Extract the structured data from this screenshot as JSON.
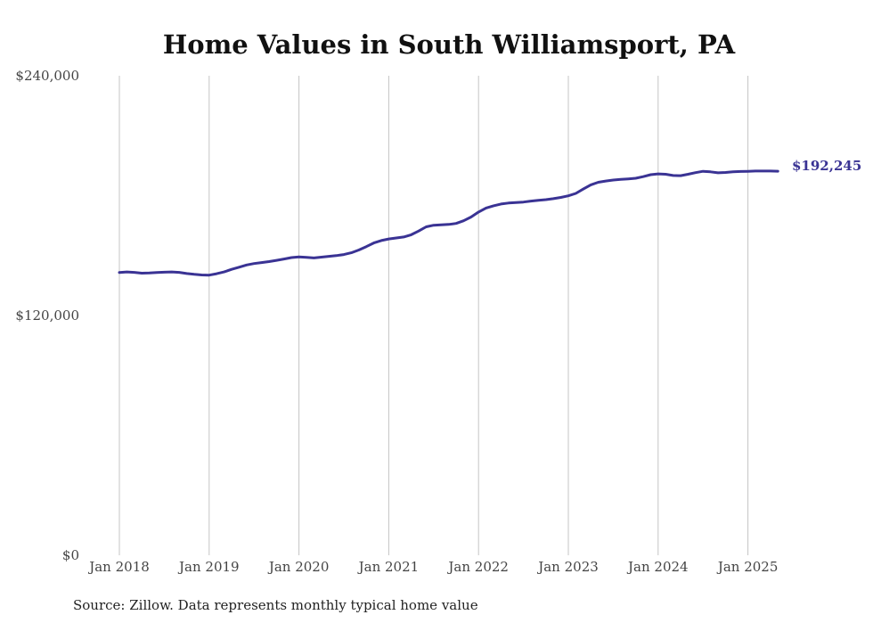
{
  "chart_data": {
    "type": "line",
    "title": "Home Values in South Williamsport, PA",
    "xlabel": "",
    "ylabel": "",
    "ylim": [
      0,
      240000
    ],
    "yticks": [
      0,
      120000,
      240000
    ],
    "ytick_labels": [
      "$0",
      "$120,000",
      "$240,000"
    ],
    "xticks": [
      "2018-01",
      "2019-01",
      "2020-01",
      "2021-01",
      "2022-01",
      "2023-01",
      "2024-01",
      "2025-01"
    ],
    "xtick_labels": [
      "Jan 2018",
      "Jan 2019",
      "Jan 2020",
      "Jan 2021",
      "Jan 2022",
      "Jan 2023",
      "Jan 2024",
      "Jan 2025"
    ],
    "xlim": [
      "2018-01",
      "2025-05"
    ],
    "grid": {
      "vertical": true,
      "horizontal": false
    },
    "line_color": "#3a3394",
    "end_label": "$192,245",
    "series": [
      {
        "x": [
          "2018-01",
          "2018-02",
          "2018-03",
          "2018-04",
          "2018-05",
          "2018-06",
          "2018-07",
          "2018-08",
          "2018-09",
          "2018-10",
          "2018-11",
          "2018-12",
          "2019-01",
          "2019-02",
          "2019-03",
          "2019-04",
          "2019-05",
          "2019-06",
          "2019-07",
          "2019-08",
          "2019-09",
          "2019-10",
          "2019-11",
          "2019-12",
          "2020-01",
          "2020-02",
          "2020-03",
          "2020-04",
          "2020-05",
          "2020-06",
          "2020-07",
          "2020-08",
          "2020-09",
          "2020-10",
          "2020-11",
          "2020-12",
          "2021-01",
          "2021-02",
          "2021-03",
          "2021-04",
          "2021-05",
          "2021-06",
          "2021-07",
          "2021-08",
          "2021-09",
          "2021-10",
          "2021-11",
          "2021-12",
          "2022-01",
          "2022-02",
          "2022-03",
          "2022-04",
          "2022-05",
          "2022-06",
          "2022-07",
          "2022-08",
          "2022-09",
          "2022-10",
          "2022-11",
          "2022-12",
          "2023-01",
          "2023-02",
          "2023-03",
          "2023-04",
          "2023-05",
          "2023-06",
          "2023-07",
          "2023-08",
          "2023-09",
          "2023-10",
          "2023-11",
          "2023-12",
          "2024-01",
          "2024-02",
          "2024-03",
          "2024-04",
          "2024-05",
          "2024-06",
          "2024-07",
          "2024-08",
          "2024-09",
          "2024-10",
          "2024-11",
          "2024-12",
          "2025-01",
          "2025-02",
          "2025-03",
          "2025-04",
          "2025-05"
        ],
        "values": [
          141500,
          141800,
          141600,
          141200,
          141300,
          141500,
          141700,
          141800,
          141600,
          141000,
          140600,
          140300,
          140200,
          140900,
          141800,
          143100,
          144200,
          145300,
          146000,
          146500,
          147000,
          147600,
          148300,
          149000,
          149300,
          149100,
          148800,
          149200,
          149600,
          150000,
          150500,
          151400,
          152800,
          154500,
          156300,
          157500,
          158300,
          158800,
          159300,
          160400,
          162300,
          164400,
          165200,
          165400,
          165600,
          166100,
          167400,
          169300,
          171800,
          173800,
          174900,
          175800,
          176300,
          176500,
          176800,
          177300,
          177700,
          178000,
          178500,
          179100,
          179900,
          181100,
          183300,
          185400,
          186700,
          187300,
          187800,
          188100,
          188400,
          188700,
          189500,
          190500,
          190900,
          190700,
          190100,
          190000,
          190700,
          191500,
          192200,
          191900,
          191400,
          191600,
          191900,
          192100,
          192200,
          192300,
          192300,
          192300,
          192245
        ]
      }
    ]
  },
  "source_note": "Source: Zillow. Data represents monthly typical home value"
}
